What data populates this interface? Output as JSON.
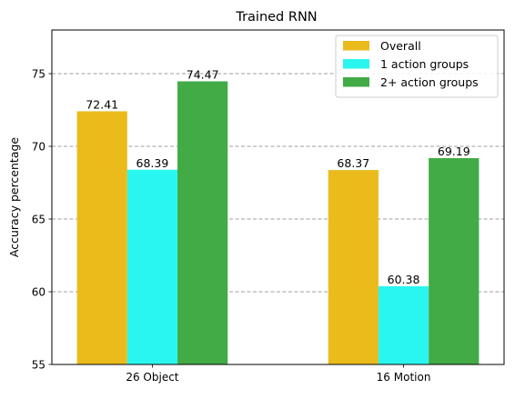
{
  "chart_data": {
    "type": "bar",
    "title": "Trained RNN",
    "xlabel": "",
    "ylabel": "Accuracy percentage",
    "categories": [
      "26 Object",
      "16 Motion"
    ],
    "series": [
      {
        "name": "Overall",
        "values": [
          72.41,
          68.37
        ],
        "color": "#EBBB1C"
      },
      {
        "name": "1 action groups",
        "values": [
          68.39,
          60.38
        ],
        "color": "#2AF6F0"
      },
      {
        "name": "2+ action groups",
        "values": [
          74.47,
          69.19
        ],
        "color": "#42AB45"
      }
    ],
    "value_labels": [
      [
        "72.41",
        "68.37"
      ],
      [
        "68.39",
        "60.38"
      ],
      [
        "74.47",
        "69.19"
      ]
    ],
    "ylim": [
      55,
      78
    ],
    "yticks": [
      55,
      60,
      65,
      70,
      75
    ],
    "ytick_labels": [
      "55",
      "60",
      "65",
      "70",
      "75"
    ],
    "grid": "horizontal dashed",
    "legend_position": "top-right"
  }
}
